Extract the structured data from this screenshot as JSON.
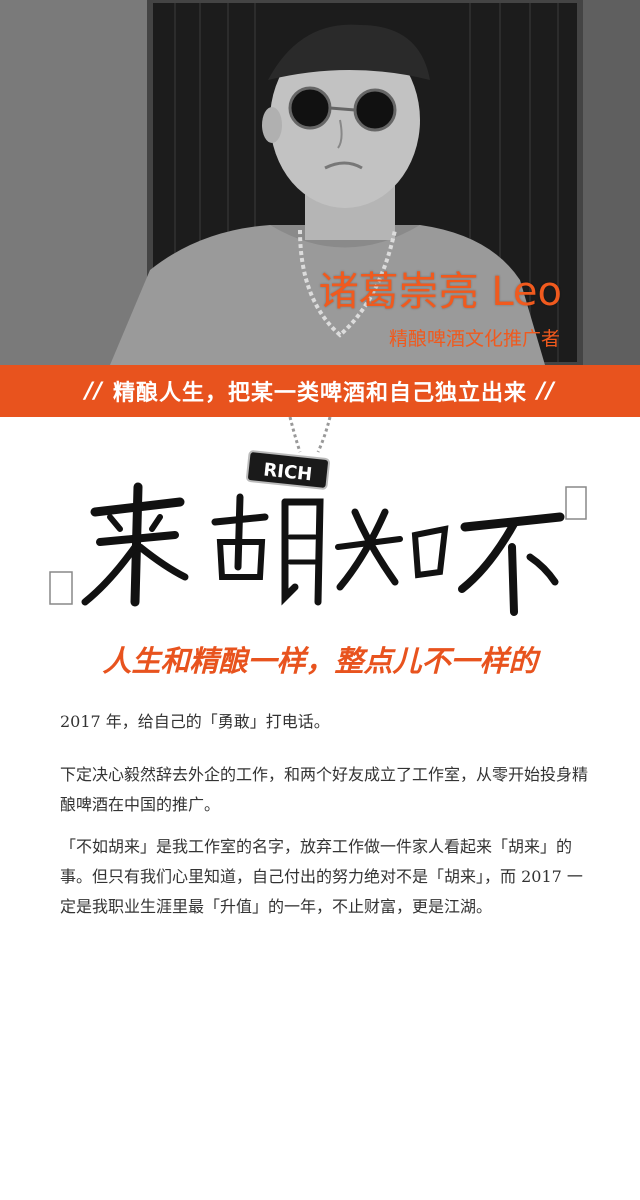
{
  "hero": {
    "name": "诸葛崇亮 Leo",
    "role": "精酿啤酒文化推广者"
  },
  "banner": {
    "slash_left": "//",
    "text": "精酿人生，把某一类啤酒和自己独立出来",
    "slash_right": "//"
  },
  "calligraphy": {
    "characters": [
      "来",
      "胡",
      "如",
      "不"
    ],
    "pendant_text": "RICH"
  },
  "headline": "人生和精酿一样，整点儿不一样的",
  "paragraphs": [
    "2017 年，给自己的「勇敢」打电话。",
    "下定决心毅然辞去外企的工作，和两个好友成立了工作室，从零开始投身精酿啤酒在中国的推广。",
    "「不如胡来」是我工作室的名字，放弃工作做一件家人看起来「胡来」的事。但只有我们心里知道，自己付出的努力绝对不是「胡来」，而 2017 一定是我职业生涯里最「升值」的一年，不止财富，更是江湖。"
  ],
  "colors": {
    "accent": "#e8531e",
    "text": "#333333"
  }
}
